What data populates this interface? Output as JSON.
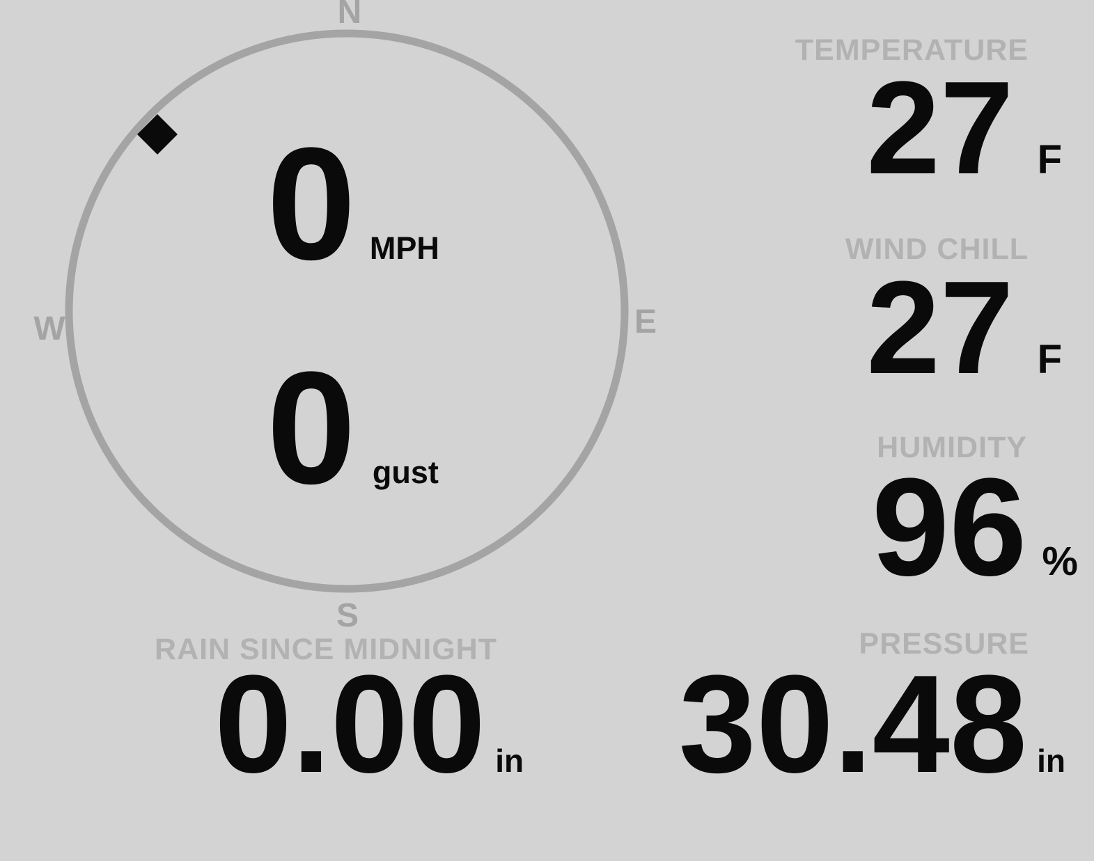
{
  "colors": {
    "background": "#d3d3d3",
    "compass": "#a4a4a4",
    "label_gray": "#b2b2b2",
    "value_black": "#0a0a0a"
  },
  "wind": {
    "speed_value": "0",
    "speed_unit": "MPH",
    "gust_value": "0",
    "gust_unit": "gust",
    "direction_degrees": 313,
    "direction_compass": "NW",
    "directions": {
      "north": "N",
      "east": "E",
      "south": "S",
      "west": "W"
    }
  },
  "stats": {
    "temperature": {
      "label": "TEMPERATURE",
      "value": "27",
      "unit": "F"
    },
    "wind_chill": {
      "label": "WIND CHILL",
      "value": "27",
      "unit": "F"
    },
    "humidity": {
      "label": "HUMIDITY",
      "value": "96",
      "unit": "%"
    },
    "rain_since_midnight": {
      "label": "RAIN SINCE MIDNIGHT",
      "value": "0.00",
      "unit": "in"
    },
    "pressure": {
      "label": "PRESSURE",
      "value": "30.48",
      "unit": "in"
    }
  }
}
